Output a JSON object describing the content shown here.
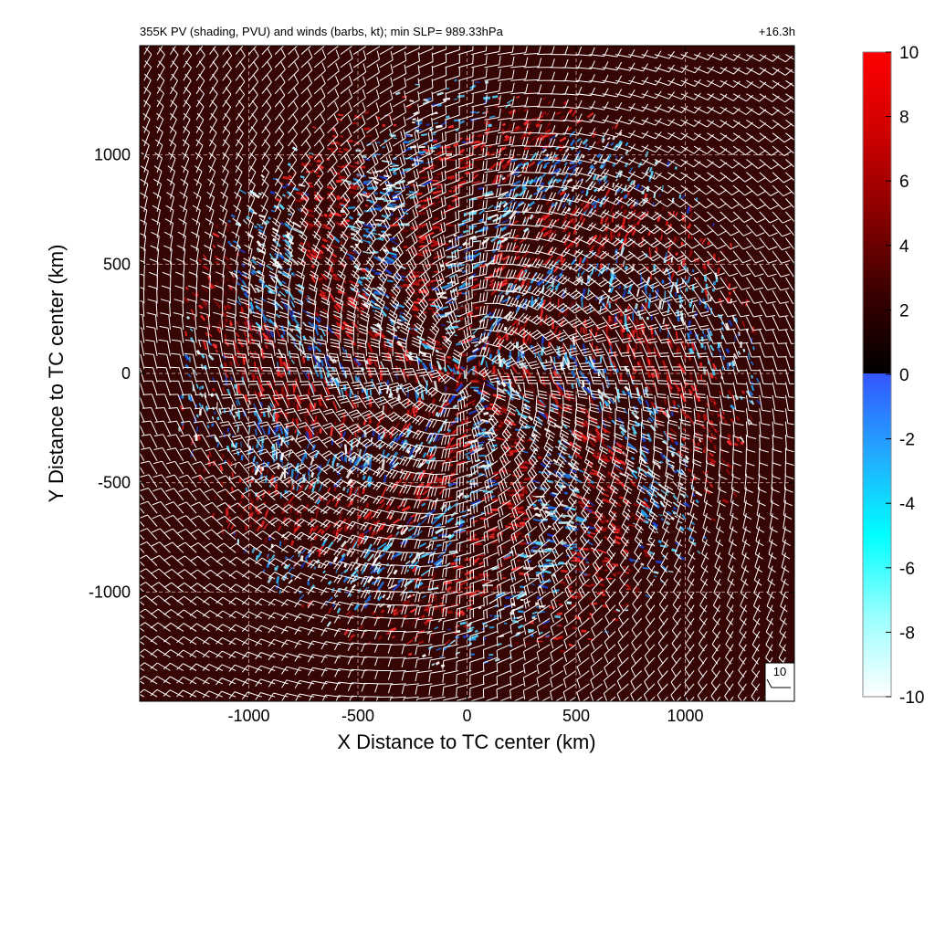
{
  "chart_data": {
    "type": "heatmap",
    "title": "355K PV (shading, PVU) and winds (barbs, kt); min SLP= 989.33hPa",
    "time_label": "+16.3h",
    "xlabel": "X Distance to TC center (km)",
    "ylabel": "Y Distance to TC center (km)",
    "xlim": [
      -1500,
      1500
    ],
    "ylim": [
      -1500,
      1500
    ],
    "x_ticks": [
      -1000,
      -500,
      0,
      500,
      1000
    ],
    "y_ticks": [
      -1000,
      -500,
      0,
      500,
      1000
    ],
    "x_tick_labels": [
      "-1000",
      "-500",
      "0",
      "500",
      "1000"
    ],
    "y_tick_labels": [
      "-1000",
      "-500",
      "0",
      "500",
      "1000"
    ],
    "grid": true,
    "colorbar": {
      "label": "PVU",
      "range": [
        -10,
        10
      ],
      "ticks": [
        10,
        8,
        6,
        4,
        2,
        0,
        -2,
        -4,
        -6,
        -8,
        -10
      ],
      "tick_labels": [
        "10",
        "8",
        "6",
        "4",
        "2",
        "0",
        "-2",
        "-4",
        "-6",
        "-8",
        "-10"
      ],
      "positive_colors": [
        "#000000",
        "#3a0000",
        "#8b0000",
        "#d00000",
        "#ff0000"
      ],
      "negative_colors": [
        "#3355ff",
        "#22aaff",
        "#00ffff",
        "#99ffff",
        "#ffffff"
      ]
    },
    "field": {
      "background_pv": 1.5,
      "disturbed_region_radius_km": 1250,
      "spiral_arms": 8
    },
    "wind_barb_reference": {
      "label": "10",
      "units": "kt"
    }
  },
  "colors": {
    "background_field": "#360605",
    "barb_color": "#ffffff",
    "grid_color": "#b48c82"
  }
}
